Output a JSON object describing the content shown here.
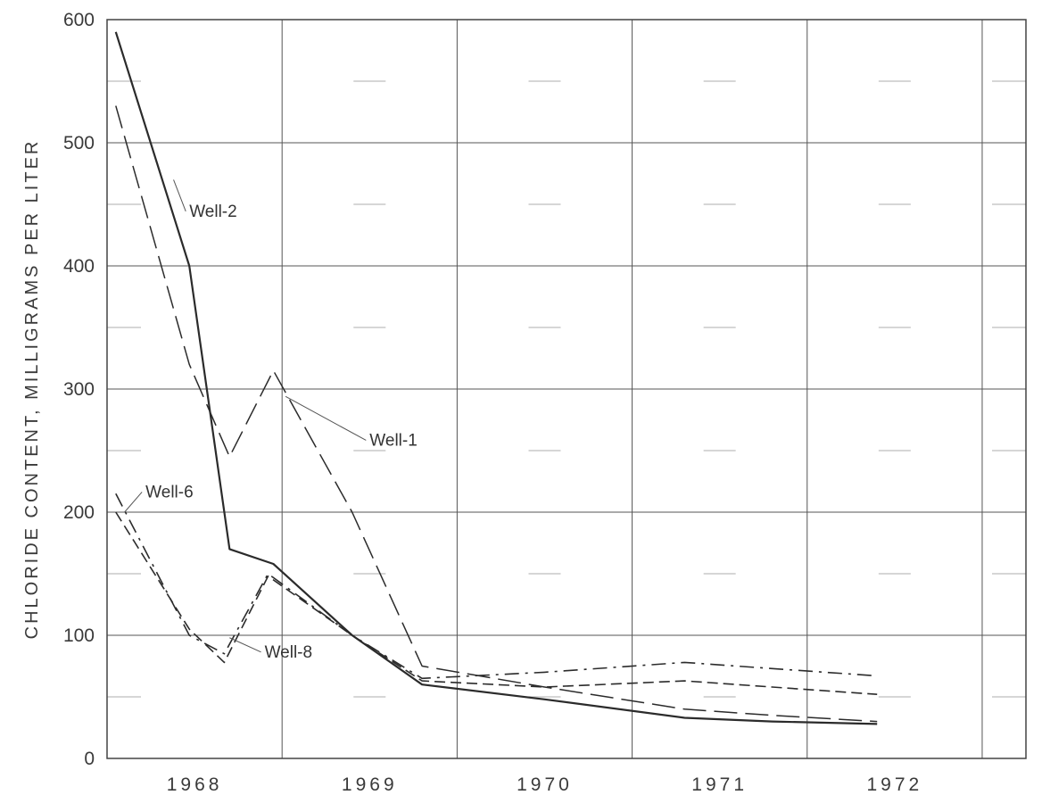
{
  "chart_data": {
    "type": "line",
    "title": "",
    "xlabel": "",
    "ylabel": "CHLORIDE CONTENT, MILLIGRAMS PER LITER",
    "x_ticks": [
      "1968",
      "1969",
      "1970",
      "1971",
      "1972"
    ],
    "y_ticks": [
      "0",
      "100",
      "200",
      "300",
      "400",
      "500",
      "600"
    ],
    "xlim": [
      1967.5,
      1972.75
    ],
    "ylim": [
      0,
      600
    ],
    "grid": true,
    "legend": "none",
    "series": [
      {
        "name": "Well-2",
        "line_style": "solid",
        "x": [
          1967.55,
          1967.97,
          1968.2,
          1968.45,
          1968.9,
          1969.3,
          1970.0,
          1970.8,
          1971.3,
          1971.9
        ],
        "y": [
          590,
          400,
          170,
          158,
          100,
          60,
          48,
          33,
          30,
          28
        ]
      },
      {
        "name": "Well-1",
        "line_style": "long-dash",
        "x": [
          1967.55,
          1967.97,
          1968.2,
          1968.45,
          1968.9,
          1969.3,
          1970.0,
          1970.8,
          1971.3,
          1971.9
        ],
        "y": [
          530,
          320,
          245,
          315,
          200,
          75,
          58,
          40,
          35,
          30
        ]
      },
      {
        "name": "Well-6",
        "line_style": "dash-dot",
        "x": [
          1967.55,
          1967.97,
          1968.17,
          1968.42,
          1968.9,
          1969.3,
          1970.0,
          1970.8,
          1971.3,
          1971.9
        ],
        "y": [
          215,
          100,
          85,
          150,
          100,
          65,
          70,
          78,
          73,
          67
        ]
      },
      {
        "name": "Well-8",
        "line_style": "medium-dash",
        "x": [
          1967.55,
          1967.97,
          1968.17,
          1968.42,
          1968.9,
          1969.3,
          1970.0,
          1970.8,
          1971.3,
          1971.9
        ],
        "y": [
          200,
          105,
          78,
          148,
          100,
          63,
          58,
          63,
          58,
          52
        ]
      }
    ],
    "annotations": [
      {
        "text": "Well-2",
        "x": 1967.97,
        "y": 440
      },
      {
        "text": "Well-1",
        "x": 1969.0,
        "y": 254
      },
      {
        "text": "Well-6",
        "x": 1967.72,
        "y": 212
      },
      {
        "text": "Well-8",
        "x": 1968.4,
        "y": 82
      }
    ]
  }
}
